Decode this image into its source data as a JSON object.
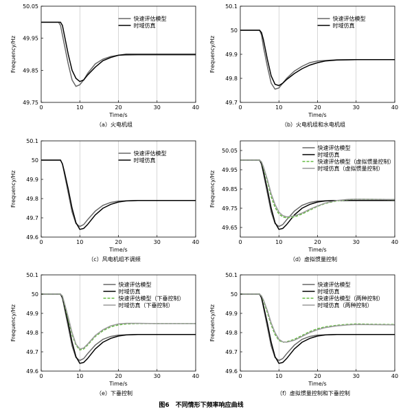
{
  "figure_title": "图6　不同情形下频率响应曲线",
  "chart_data": [
    {
      "type": "line",
      "caption": "（a）火电机组",
      "xlabel": "Time/s",
      "ylabel": "Frequency/Hz",
      "xlim": [
        0,
        40
      ],
      "ylim": [
        49.75,
        50.05
      ],
      "xticks": [
        0,
        10,
        20,
        30,
        40
      ],
      "yticks": [
        49.75,
        49.85,
        49.95,
        50.05
      ],
      "ytick_labels": [
        "49.75",
        "49.85",
        "49.95",
        "50.05"
      ],
      "grid_x": true,
      "legend": "top-right",
      "series": [
        {
          "name": "快速评估模型",
          "color": "#666666",
          "dash": "solid",
          "x": [
            0,
            4.5,
            5,
            6,
            7,
            8,
            9,
            10,
            11,
            12,
            14,
            16,
            18,
            20,
            25,
            30,
            40
          ],
          "y": [
            50,
            50,
            49.99,
            49.93,
            49.87,
            49.82,
            49.8,
            49.805,
            49.82,
            49.84,
            49.87,
            49.885,
            49.893,
            49.897,
            49.898,
            49.898,
            49.898
          ]
        },
        {
          "name": "时域仿真",
          "color": "#000000",
          "dash": "solid",
          "x": [
            0,
            5,
            5.5,
            6,
            7,
            8,
            9,
            10,
            11,
            12,
            14,
            16,
            18,
            20,
            22,
            25,
            30,
            40
          ],
          "y": [
            50,
            50,
            49.99,
            49.96,
            49.9,
            49.85,
            49.825,
            49.815,
            49.82,
            49.835,
            49.86,
            49.88,
            49.89,
            49.897,
            49.9,
            49.9,
            49.9,
            49.9
          ]
        }
      ]
    },
    {
      "type": "line",
      "caption": "（b）火电机组和水电机组",
      "xlabel": "Time/s",
      "ylabel": "Frequency/Hz",
      "xlim": [
        0,
        40
      ],
      "ylim": [
        49.7,
        50.1
      ],
      "xticks": [
        0,
        10,
        20,
        30,
        40
      ],
      "yticks": [
        49.7,
        49.8,
        49.9,
        50,
        50.1
      ],
      "ytick_labels": [
        "49.7",
        "49.8",
        "49.9",
        "50",
        "50.1"
      ],
      "grid_x": true,
      "legend": "top-right",
      "series": [
        {
          "name": "快速评估模型",
          "color": "#666666",
          "dash": "solid",
          "x": [
            0,
            5,
            5.5,
            6,
            7,
            8,
            9,
            10,
            11,
            12,
            14,
            16,
            18,
            20,
            25,
            30,
            40
          ],
          "y": [
            50,
            50,
            49.98,
            49.93,
            49.85,
            49.78,
            49.755,
            49.76,
            49.78,
            49.8,
            49.83,
            49.85,
            49.865,
            49.872,
            49.877,
            49.878,
            49.878
          ]
        },
        {
          "name": "时域仿真",
          "color": "#000000",
          "dash": "solid",
          "x": [
            0,
            5,
            5.5,
            6,
            7,
            8,
            9,
            10,
            11,
            12,
            14,
            16,
            18,
            20,
            22,
            25,
            30,
            40
          ],
          "y": [
            50,
            50,
            49.99,
            49.96,
            49.88,
            49.81,
            49.775,
            49.77,
            49.78,
            49.795,
            49.82,
            49.84,
            49.855,
            49.865,
            49.872,
            49.876,
            49.878,
            49.878
          ]
        }
      ]
    },
    {
      "type": "line",
      "caption": "（c）风电机组不调频",
      "xlabel": "Time/s",
      "ylabel": "Frequency/Hz",
      "xlim": [
        0,
        40
      ],
      "ylim": [
        49.6,
        50.1
      ],
      "xticks": [
        0,
        10,
        20,
        30,
        40
      ],
      "yticks": [
        49.6,
        49.7,
        49.8,
        49.9,
        50,
        50.1
      ],
      "ytick_labels": [
        "49.6",
        "49.7",
        "49.8",
        "49.9",
        "50",
        "50.1"
      ],
      "grid_x": true,
      "legend": "top-right",
      "series": [
        {
          "name": "快速评估模型",
          "color": "#666666",
          "dash": "solid",
          "x": [
            0,
            5,
            5.5,
            6,
            7,
            8,
            9,
            10,
            11,
            12,
            14,
            16,
            18,
            20,
            25,
            30,
            40
          ],
          "y": [
            50,
            50,
            49.98,
            49.93,
            49.83,
            49.73,
            49.67,
            49.655,
            49.665,
            49.69,
            49.735,
            49.765,
            49.78,
            49.787,
            49.79,
            49.79,
            49.79
          ]
        },
        {
          "name": "时域仿真",
          "color": "#000000",
          "dash": "solid",
          "x": [
            0,
            5,
            5.5,
            6,
            7,
            8,
            9,
            10,
            11,
            12,
            14,
            16,
            18,
            20,
            22,
            25,
            30,
            40
          ],
          "y": [
            50,
            50,
            49.98,
            49.94,
            49.85,
            49.75,
            49.675,
            49.64,
            49.645,
            49.665,
            49.715,
            49.75,
            49.77,
            49.782,
            49.788,
            49.79,
            49.79,
            49.79
          ]
        }
      ]
    },
    {
      "type": "line",
      "caption": "（d）虚拟惯量控制",
      "xlabel": "Time/s",
      "ylabel": "Frequency/Hz",
      "xlim": [
        0,
        40
      ],
      "ylim": [
        49.6,
        50.1
      ],
      "xticks": [
        0,
        10,
        20,
        30,
        40
      ],
      "yticks": [
        49.65,
        49.75,
        49.85,
        49.95,
        50.05
      ],
      "ytick_labels": [
        "49.65",
        "49.75",
        "49.85",
        "49.95",
        "50.05"
      ],
      "grid_x": true,
      "legend": "top-right",
      "series": [
        {
          "name": "快速评估模型",
          "color": "#666666",
          "dash": "solid",
          "x": [
            0,
            5,
            5.5,
            6,
            7,
            8,
            9,
            10,
            11,
            12,
            14,
            16,
            18,
            20,
            25,
            30,
            40
          ],
          "y": [
            50,
            50,
            49.98,
            49.93,
            49.83,
            49.73,
            49.67,
            49.655,
            49.665,
            49.69,
            49.735,
            49.765,
            49.78,
            49.787,
            49.79,
            49.79,
            49.79
          ]
        },
        {
          "name": "时域仿真",
          "color": "#000000",
          "dash": "solid",
          "x": [
            0,
            5,
            5.5,
            6,
            7,
            8,
            9,
            10,
            11,
            12,
            14,
            16,
            18,
            20,
            22,
            25,
            30,
            40
          ],
          "y": [
            50,
            50,
            49.98,
            49.94,
            49.85,
            49.75,
            49.675,
            49.64,
            49.645,
            49.665,
            49.715,
            49.75,
            49.77,
            49.782,
            49.788,
            49.79,
            49.79,
            49.79
          ]
        },
        {
          "name": "快速评估模型（虚拟惯量控制）",
          "color": "#66bb44",
          "dash": "dashed",
          "x": [
            0,
            5,
            5.5,
            6,
            7,
            8,
            9,
            10,
            11,
            12,
            14,
            16,
            18,
            20,
            22,
            25,
            28,
            30,
            35,
            40
          ],
          "y": [
            50,
            50,
            49.99,
            49.96,
            49.89,
            49.81,
            49.755,
            49.72,
            49.705,
            49.7,
            49.705,
            49.72,
            49.74,
            49.76,
            49.775,
            49.788,
            49.795,
            49.797,
            49.796,
            49.795
          ]
        },
        {
          "name": "时域仿真（虚拟惯量控制）",
          "color": "#999999",
          "dash": "solid",
          "x": [
            0,
            5,
            5.5,
            6,
            7,
            8,
            9,
            10,
            11,
            12,
            14,
            16,
            18,
            20,
            22,
            25,
            28,
            30,
            35,
            40
          ],
          "y": [
            50,
            50,
            49.99,
            49.965,
            49.9,
            49.825,
            49.77,
            49.73,
            49.712,
            49.705,
            49.71,
            49.725,
            49.745,
            49.762,
            49.777,
            49.79,
            49.796,
            49.797,
            49.796,
            49.795
          ]
        }
      ]
    },
    {
      "type": "line",
      "caption": "（e）下垂控制",
      "xlabel": "Time/s",
      "ylabel": "Frequency/Hz",
      "xlim": [
        0,
        40
      ],
      "ylim": [
        49.6,
        50.1
      ],
      "xticks": [
        0,
        10,
        20,
        30,
        40
      ],
      "yticks": [
        49.6,
        49.7,
        49.8,
        49.9,
        50,
        50.1
      ],
      "ytick_labels": [
        "49.6",
        "49.7",
        "49.8",
        "49.9",
        "50",
        "50.1"
      ],
      "grid_x": true,
      "legend": "top-right",
      "series": [
        {
          "name": "快速评估模型",
          "color": "#666666",
          "dash": "solid",
          "x": [
            0,
            5,
            5.5,
            6,
            7,
            8,
            9,
            10,
            11,
            12,
            14,
            16,
            18,
            20,
            25,
            30,
            40
          ],
          "y": [
            50,
            50,
            49.98,
            49.93,
            49.83,
            49.73,
            49.67,
            49.655,
            49.665,
            49.69,
            49.735,
            49.765,
            49.78,
            49.787,
            49.79,
            49.79,
            49.79
          ]
        },
        {
          "name": "时域仿真",
          "color": "#000000",
          "dash": "solid",
          "x": [
            0,
            5,
            5.5,
            6,
            7,
            8,
            9,
            10,
            11,
            12,
            14,
            16,
            18,
            20,
            22,
            25,
            30,
            40
          ],
          "y": [
            50,
            50,
            49.98,
            49.94,
            49.85,
            49.75,
            49.675,
            49.64,
            49.645,
            49.665,
            49.715,
            49.75,
            49.77,
            49.782,
            49.788,
            49.79,
            49.79,
            49.79
          ]
        },
        {
          "name": "快速评估模型（下垂控制）",
          "color": "#66bb44",
          "dash": "dashed",
          "x": [
            0,
            5,
            5.5,
            6,
            7,
            8,
            9,
            10,
            11,
            12,
            14,
            16,
            18,
            20,
            22,
            25,
            30,
            40
          ],
          "y": [
            50,
            50,
            49.99,
            49.95,
            49.87,
            49.79,
            49.735,
            49.71,
            49.715,
            49.735,
            49.78,
            49.81,
            49.83,
            49.84,
            49.845,
            49.847,
            49.847,
            49.847
          ]
        },
        {
          "name": "时域仿真（下垂控制）",
          "color": "#999999",
          "dash": "solid",
          "x": [
            0,
            5,
            5.5,
            6,
            7,
            8,
            9,
            10,
            11,
            12,
            14,
            16,
            18,
            20,
            22,
            25,
            30,
            40
          ],
          "y": [
            50,
            50,
            49.99,
            49.955,
            49.88,
            49.8,
            49.74,
            49.715,
            49.72,
            49.74,
            49.785,
            49.815,
            49.835,
            49.845,
            49.848,
            49.848,
            49.847,
            49.847
          ]
        }
      ]
    },
    {
      "type": "line",
      "caption": "（f）虚拟惯量控制和下垂控制",
      "xlabel": "Time/s",
      "ylabel": "Frequency/Hz",
      "xlim": [
        0,
        40
      ],
      "ylim": [
        49.6,
        50.1
      ],
      "xticks": [
        0,
        10,
        20,
        30,
        40
      ],
      "yticks": [
        49.6,
        49.7,
        49.8,
        49.9,
        50,
        50.1
      ],
      "ytick_labels": [
        "49.6",
        "49.7",
        "49.8",
        "49.9",
        "50",
        "50.1"
      ],
      "grid_x": true,
      "legend": "top-right",
      "series": [
        {
          "name": "快速评估模型",
          "color": "#666666",
          "dash": "solid",
          "x": [
            0,
            5,
            5.5,
            6,
            7,
            8,
            9,
            10,
            11,
            12,
            14,
            16,
            18,
            20,
            25,
            30,
            40
          ],
          "y": [
            50,
            50,
            49.98,
            49.93,
            49.83,
            49.73,
            49.67,
            49.655,
            49.665,
            49.69,
            49.735,
            49.765,
            49.78,
            49.787,
            49.79,
            49.79,
            49.79
          ]
        },
        {
          "name": "时域仿真",
          "color": "#000000",
          "dash": "solid",
          "x": [
            0,
            5,
            5.5,
            6,
            7,
            8,
            9,
            10,
            11,
            12,
            14,
            16,
            18,
            20,
            22,
            25,
            30,
            40
          ],
          "y": [
            50,
            50,
            49.98,
            49.94,
            49.85,
            49.75,
            49.675,
            49.64,
            49.645,
            49.665,
            49.715,
            49.75,
            49.77,
            49.782,
            49.788,
            49.79,
            49.79,
            49.79
          ]
        },
        {
          "name": "快速评估模型（两种控制）",
          "color": "#66bb44",
          "dash": "dashed",
          "x": [
            0,
            5,
            5.5,
            6,
            7,
            8,
            9,
            10,
            11,
            12,
            14,
            16,
            18,
            20,
            22,
            25,
            28,
            30,
            35,
            40
          ],
          "y": [
            50,
            50,
            49.99,
            49.965,
            49.905,
            49.84,
            49.79,
            49.76,
            49.75,
            49.752,
            49.765,
            49.785,
            49.805,
            49.82,
            49.83,
            49.838,
            49.843,
            49.845,
            49.843,
            49.842
          ]
        },
        {
          "name": "时域仿真（两种控制）",
          "color": "#999999",
          "dash": "solid",
          "x": [
            0,
            5,
            5.5,
            6,
            7,
            8,
            9,
            10,
            11,
            12,
            14,
            16,
            18,
            20,
            22,
            25,
            28,
            30,
            35,
            40
          ],
          "y": [
            50,
            50,
            49.99,
            49.97,
            49.915,
            49.85,
            49.8,
            49.765,
            49.752,
            49.75,
            49.76,
            49.78,
            49.8,
            49.815,
            49.826,
            49.835,
            49.84,
            49.842,
            49.841,
            49.84
          ]
        }
      ]
    }
  ]
}
